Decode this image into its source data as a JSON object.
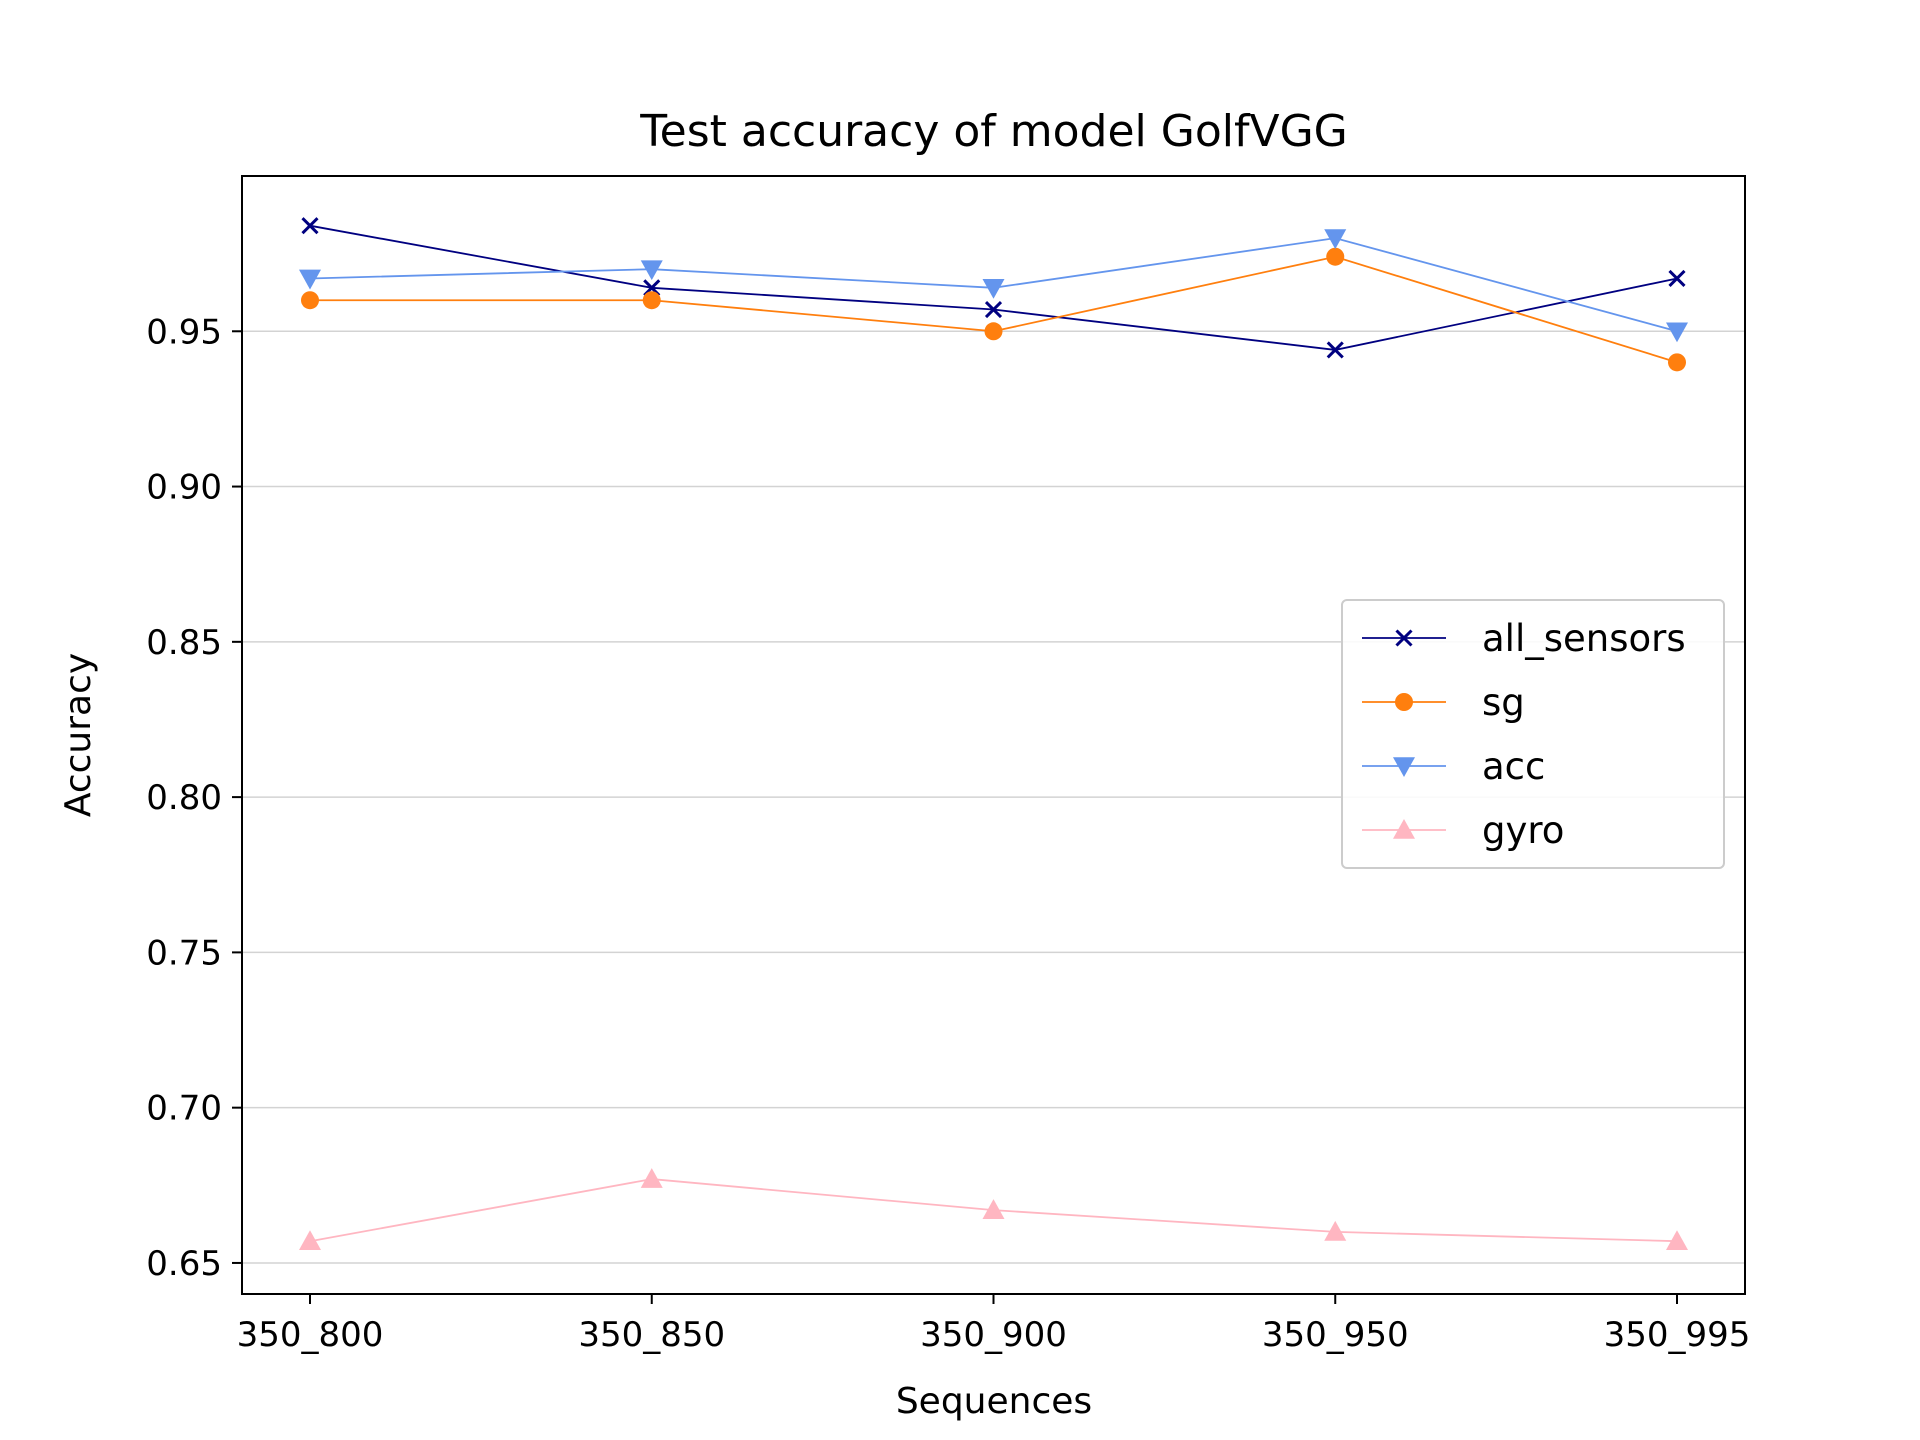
{
  "chart_data": {
    "type": "line",
    "title": "Test accuracy of model GolfVGG",
    "xlabel": "Sequences",
    "ylabel": "Accuracy",
    "categories": [
      "350_800",
      "350_850",
      "350_900",
      "350_950",
      "350_995"
    ],
    "ylim": [
      0.64,
      1.0
    ],
    "yticks": [
      "0.65",
      "0.70",
      "0.75",
      "0.80",
      "0.85",
      "0.90",
      "0.95"
    ],
    "grid": "horizontal",
    "legend_position": "center-right",
    "series": [
      {
        "name": "all_sensors",
        "color": "#000080",
        "marker": "x",
        "values": [
          0.984,
          0.964,
          0.957,
          0.944,
          0.967
        ]
      },
      {
        "name": "sg",
        "color": "#ff7f0e",
        "marker": "circle",
        "values": [
          0.96,
          0.96,
          0.95,
          0.974,
          0.94
        ]
      },
      {
        "name": "acc",
        "color": "#6495ed",
        "marker": "triangle-down",
        "values": [
          0.967,
          0.97,
          0.964,
          0.98,
          0.95
        ]
      },
      {
        "name": "gyro",
        "color": "#ffb6c1",
        "marker": "triangle-up",
        "values": [
          0.657,
          0.677,
          0.667,
          0.66,
          0.657
        ]
      }
    ]
  }
}
